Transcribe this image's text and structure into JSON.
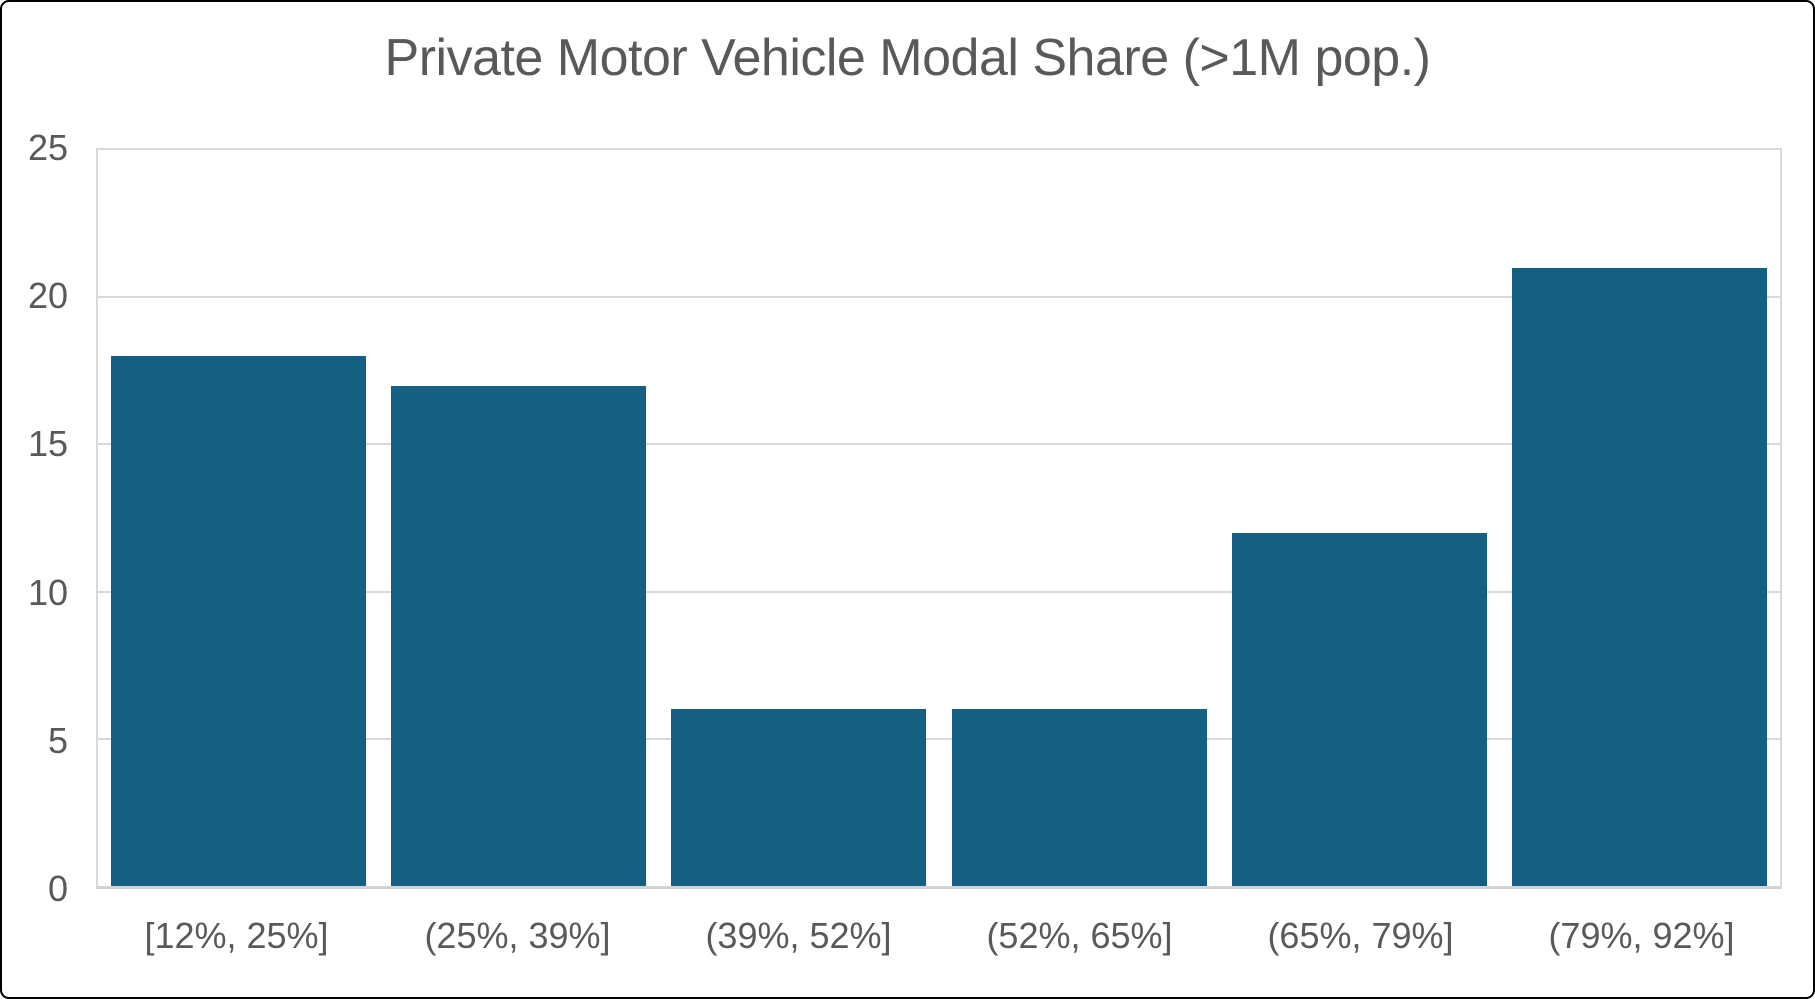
{
  "chart_data": {
    "type": "bar",
    "title": "Private Motor Vehicle Modal Share (>1M pop.)",
    "categories": [
      "[12%, 25%]",
      "(25%, 39%]",
      "(39%, 52%]",
      "(52%, 65%]",
      "(65%, 79%]",
      "(79%, 92%]"
    ],
    "values": [
      18,
      17,
      6,
      6,
      12,
      21
    ],
    "xlabel": "",
    "ylabel": "",
    "ylim": [
      0,
      25
    ],
    "yticks": [
      0,
      5,
      10,
      15,
      20,
      25
    ],
    "grid": true,
    "legend_position": "none",
    "bar_width_fraction": 0.91,
    "colors": {
      "bar": "#156082",
      "title_text": "#595959",
      "tick_text": "#595959",
      "gridline": "#D9D9D9",
      "axis_line": "#D2D2D2",
      "plot_background": "#FFFFFF",
      "frame_background": "#FFFFFF",
      "frame_border": "#000000"
    }
  }
}
